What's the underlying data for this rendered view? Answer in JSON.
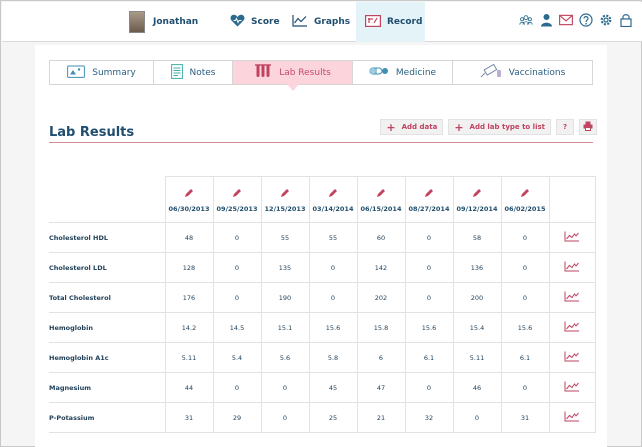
{
  "header": {
    "username": "Jonathan",
    "nav": {
      "score": "Score",
      "graphs": "Graphs",
      "record": "Record"
    },
    "tool_icons": [
      "group-icon",
      "person-icon",
      "mail-icon",
      "help-icon",
      "gear-icon",
      "lock-icon"
    ]
  },
  "tabs": [
    {
      "label": "Summary",
      "icon": "summary-icon"
    },
    {
      "label": "Notes",
      "icon": "notes-icon"
    },
    {
      "label": "Lab Results",
      "icon": "test-tubes-icon"
    },
    {
      "label": "Medicine",
      "icon": "pills-icon"
    },
    {
      "label": "Vaccinations",
      "icon": "syringe-icon"
    }
  ],
  "section": {
    "title": "Lab Results",
    "add_data": "Add data",
    "add_lab_type": "Add lab type to list",
    "help": "?"
  },
  "colors": {
    "accent": "#c0435f",
    "brand": "#1f4e6f",
    "active_tab_bg": "#fbd4dc",
    "nav_active_bg": "#e4f3f8"
  },
  "table": {
    "dates": [
      "06/30/2013",
      "09/25/2013",
      "12/15/2013",
      "03/14/2014",
      "06/15/2014",
      "08/27/2014",
      "09/12/2014",
      "06/02/2015"
    ],
    "rows": [
      {
        "name": "Cholesterol HDL",
        "values": [
          "48",
          "0",
          "55",
          "55",
          "60",
          "0",
          "58",
          "0"
        ]
      },
      {
        "name": "Cholesterol LDL",
        "values": [
          "128",
          "0",
          "135",
          "0",
          "142",
          "0",
          "136",
          "0"
        ]
      },
      {
        "name": "Total Cholesterol",
        "values": [
          "176",
          "0",
          "190",
          "0",
          "202",
          "0",
          "200",
          "0"
        ]
      },
      {
        "name": "Hemoglobin",
        "values": [
          "14.2",
          "14.5",
          "15.1",
          "15.6",
          "15.8",
          "15.6",
          "15.4",
          "15.6"
        ]
      },
      {
        "name": "Hemoglobin A1c",
        "values": [
          "5.11",
          "5.4",
          "5.6",
          "5.8",
          "6",
          "6.1",
          "5.11",
          "6.1"
        ]
      },
      {
        "name": "Magnesium",
        "values": [
          "44",
          "0",
          "0",
          "45",
          "47",
          "0",
          "46",
          "0"
        ]
      },
      {
        "name": "P-Potassium",
        "values": [
          "31",
          "29",
          "0",
          "25",
          "21",
          "32",
          "0",
          "31"
        ]
      }
    ]
  }
}
